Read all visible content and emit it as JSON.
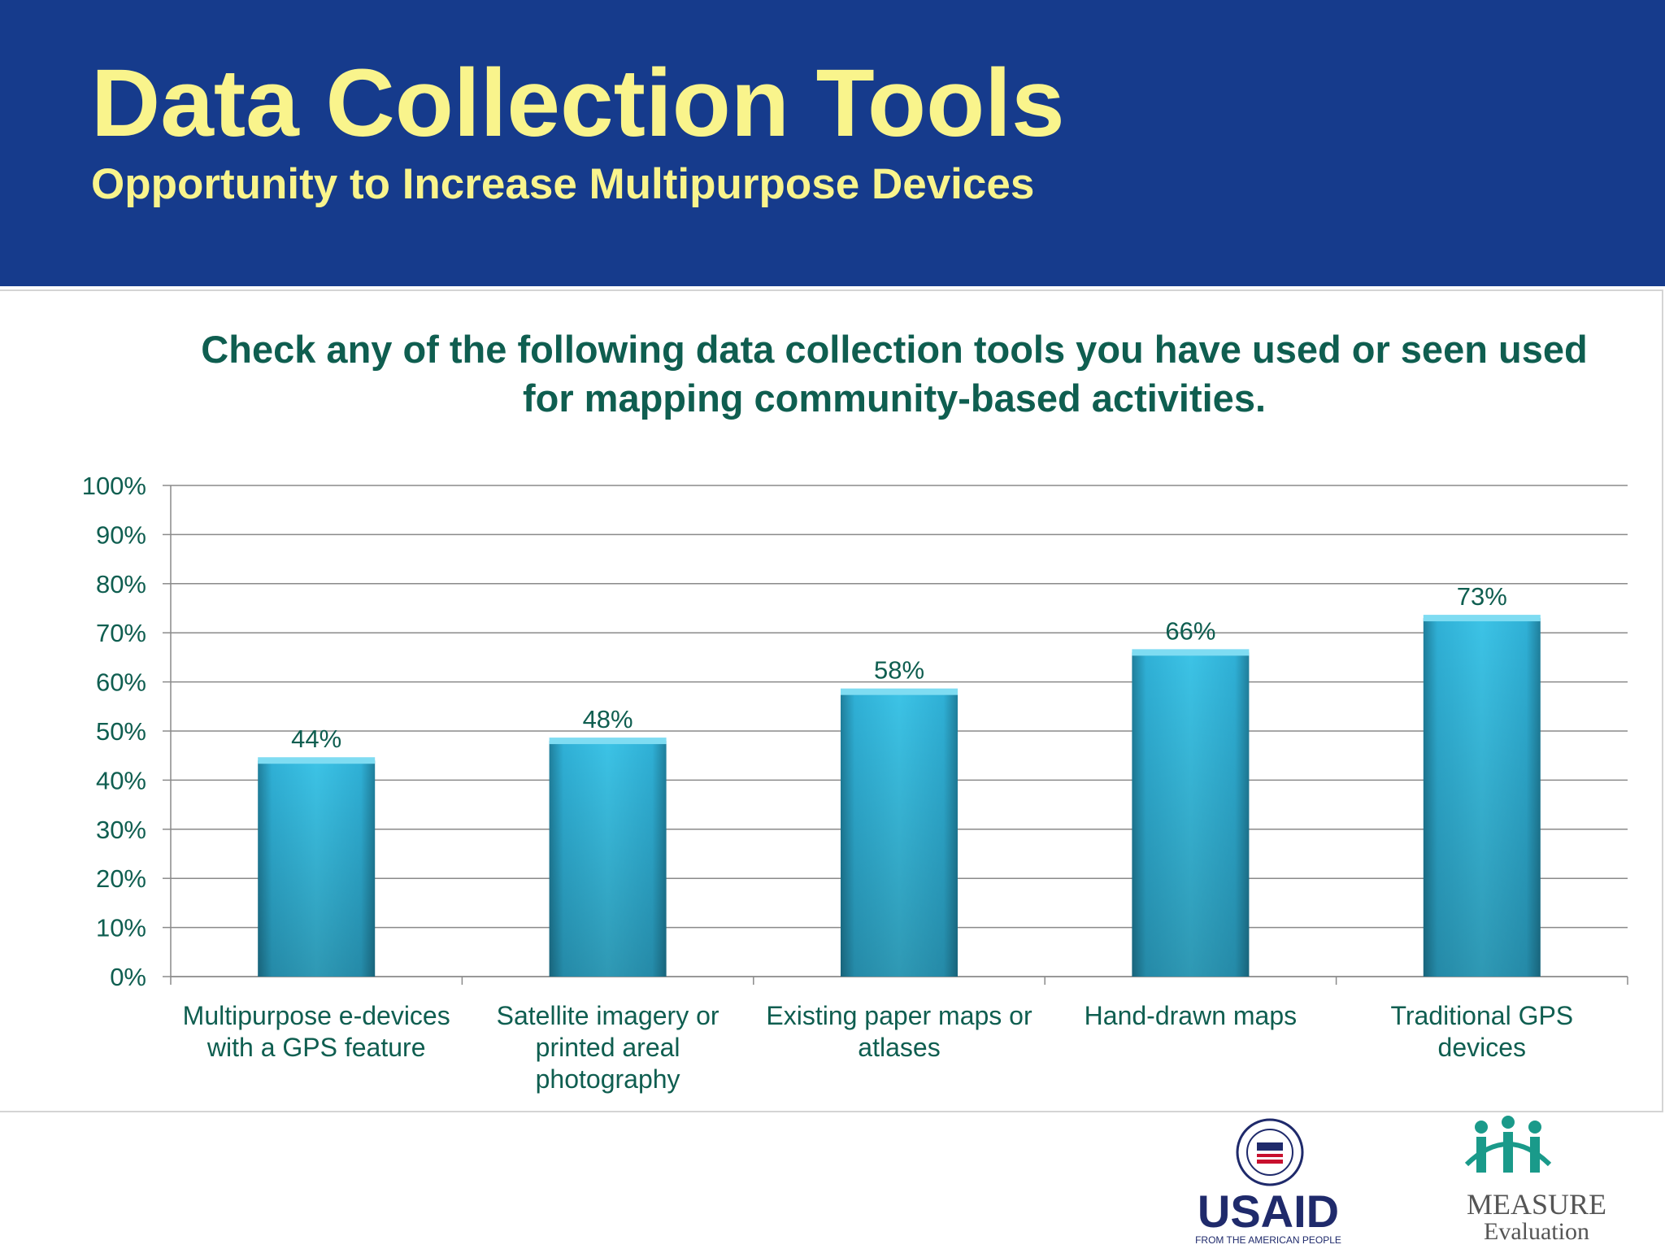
{
  "header": {
    "title": "Data Collection Tools",
    "subtitle": "Opportunity to Increase Multipurpose Devices"
  },
  "question": "Check any of the following data collection tools you have used or seen used for mapping community-based activities.",
  "colors": {
    "header_bg": "#163b8c",
    "title": "#f9f48c",
    "question": "#0f5e50",
    "bar": "#2fb0d6",
    "axis_text": "#0f5e50"
  },
  "chart_data": {
    "type": "bar",
    "title": "",
    "xlabel": "",
    "ylabel": "",
    "categories": [
      [
        "Multipurpose e-devices",
        "with a GPS feature"
      ],
      [
        "Satellite imagery or",
        "printed areal",
        "photography"
      ],
      [
        "Existing paper maps or",
        "atlases"
      ],
      [
        "Hand-drawn maps"
      ],
      [
        "Traditional GPS",
        "devices"
      ]
    ],
    "values": [
      44,
      48,
      58,
      66,
      73
    ],
    "data_labels": [
      "44%",
      "48%",
      "58%",
      "66%",
      "73%"
    ],
    "ylim": [
      0,
      100
    ],
    "yticks": [
      "0%",
      "10%",
      "20%",
      "30%",
      "40%",
      "50%",
      "60%",
      "70%",
      "80%",
      "90%",
      "100%"
    ],
    "grid": true,
    "legend": "none"
  },
  "logos": {
    "usaid": {
      "name": "USAID",
      "tagline": "FROM THE AMERICAN PEOPLE",
      "seal_icon": "usaid-seal-icon"
    },
    "measure": {
      "line1": "MEASURE",
      "line2": "Evaluation",
      "icon": "measure-people-icon"
    }
  }
}
